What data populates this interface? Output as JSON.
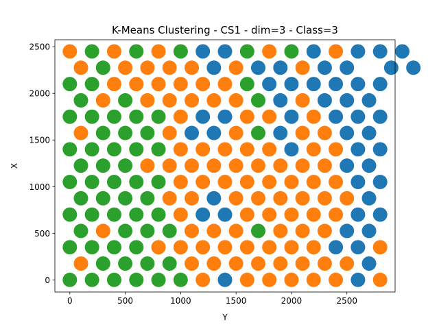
{
  "chart_data": {
    "type": "scatter",
    "title": "K-Means Clustering - CS1 - dim=3 - Class=3",
    "xlabel": "Y",
    "ylabel": "X",
    "xlim": [
      -135,
      2935
    ],
    "ylim": [
      -130,
      2575
    ],
    "xticks": [
      0,
      500,
      1000,
      1500,
      2000,
      2500
    ],
    "yticks": [
      0,
      500,
      1000,
      1500,
      2000,
      2500
    ],
    "grid": false,
    "legend": "none",
    "colors": {
      "0": "#1f77b4",
      "1": "#ff7f0e",
      "2": "#2ca02c"
    },
    "x_grid_step": 100,
    "rows": [
      {
        "y": 2450,
        "x_start": 0,
        "clusters": "1212120021201000"
      },
      {
        "y": 2275,
        "x_start": 100,
        "clusters": "1211110100100 00"
      },
      {
        "y": 2100,
        "x_start": 0,
        "clusters": "221111112000000"
      },
      {
        "y": 1925,
        "x_start": 100,
        "clusters": "21211111201000"
      },
      {
        "y": 1750,
        "x_start": 0,
        "clusters": "222221001101000"
      },
      {
        "y": 1575,
        "x_start": 100,
        "clusters": "12221001201100"
      },
      {
        "y": 1400,
        "x_start": 0,
        "clusters": "222221111101100"
      },
      {
        "y": 1225,
        "x_start": 100,
        "clusters": "22211111111100"
      },
      {
        "y": 1050,
        "x_start": 0,
        "clusters": "222221111111100"
      },
      {
        "y": 875,
        "x_start": 100,
        "clusters": "22221101111110"
      },
      {
        "y": 700,
        "x_start": 0,
        "clusters": "222221001111100"
      },
      {
        "y": 525,
        "x_start": 100,
        "clusters": "21222111211100"
      },
      {
        "y": 350,
        "x_start": 0,
        "clusters": "222211111111001"
      },
      {
        "y": 175,
        "x_start": 100,
        "clusters": "12222111111110"
      },
      {
        "y": 0,
        "x_start": 0,
        "clusters": "222222101111101"
      }
    ]
  }
}
